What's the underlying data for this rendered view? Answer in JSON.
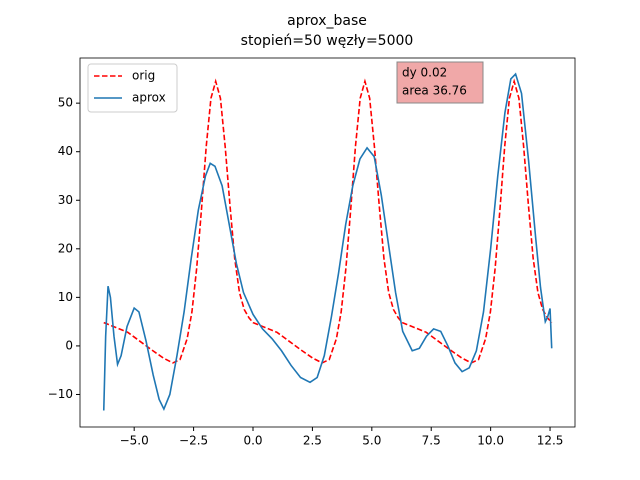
{
  "chart_data": {
    "type": "line",
    "title": "aprox_base",
    "subtitle": "stopień=50 węzły=5000",
    "annotation": [
      "dy 0.02",
      "area 36.76"
    ],
    "annotation_color": "#f0a8a8",
    "legend": "upper left",
    "xlim": [
      -7.28,
      13.55
    ],
    "ylim": [
      -16.7,
      59.3
    ],
    "xticks": [
      {
        "value": -5,
        "label": "−5.0"
      },
      {
        "value": -2.5,
        "label": "−2.5"
      },
      {
        "value": 0,
        "label": "0.0"
      },
      2.5,
      {
        "value": 5,
        "label": "5.0"
      },
      7.5,
      {
        "value": 10,
        "label": "10.0"
      },
      12.5
    ],
    "yticks": [
      {
        "value": -10,
        "label": "−10"
      },
      0,
      10,
      20,
      30,
      40,
      50
    ],
    "series": [
      {
        "name": "orig",
        "color": "#ff0000",
        "dashed": true,
        "x": [
          -6.28,
          -5.77,
          -5.27,
          -4.77,
          -4.27,
          -3.77,
          -3.37,
          -3.07,
          -2.77,
          -2.57,
          -2.37,
          -2.17,
          -1.97,
          -1.77,
          -1.57,
          -1.37,
          -1.17,
          -0.97,
          -0.77,
          -0.57,
          -0.37,
          -0.17,
          0.0,
          0.51,
          1.01,
          1.51,
          2.01,
          2.51,
          2.91,
          3.21,
          3.51,
          3.71,
          3.91,
          4.11,
          4.31,
          4.51,
          4.71,
          4.91,
          5.11,
          5.31,
          5.51,
          5.71,
          5.91,
          6.11,
          6.28,
          6.79,
          7.29,
          7.79,
          8.29,
          8.79,
          9.19,
          9.49,
          9.79,
          9.99,
          10.19,
          10.39,
          10.59,
          10.79,
          10.99,
          11.19,
          11.39,
          11.59,
          11.79,
          11.99,
          12.19,
          12.39,
          12.57
        ],
        "values": [
          4.8,
          3.8,
          2.8,
          1.0,
          -0.8,
          -2.5,
          -3.5,
          -2.8,
          1.5,
          7,
          16,
          28,
          41,
          51,
          54.5,
          51,
          41,
          29,
          18,
          11,
          7.5,
          5.8,
          4.8,
          3.8,
          2.8,
          1.0,
          -0.8,
          -2.5,
          -3.5,
          -2.8,
          1.5,
          7,
          16,
          28,
          41,
          51,
          54.5,
          51,
          41,
          29,
          18,
          11,
          7.5,
          5.8,
          4.8,
          3.8,
          2.8,
          1.0,
          -0.8,
          -2.5,
          -3.5,
          -2.8,
          1.5,
          7,
          16,
          28,
          41,
          51,
          54.5,
          51,
          41,
          29,
          18,
          11,
          7.5,
          5.8,
          4.8
        ]
      },
      {
        "name": "aprox",
        "color": "#1f77b4",
        "dashed": false,
        "x": [
          -6.28,
          -6.2,
          -6.1,
          -6.0,
          -5.85,
          -5.7,
          -5.55,
          -5.3,
          -5.0,
          -4.8,
          -4.5,
          -4.2,
          -3.95,
          -3.75,
          -3.5,
          -3.2,
          -2.9,
          -2.6,
          -2.3,
          -2.0,
          -1.8,
          -1.6,
          -1.3,
          -1.0,
          -0.7,
          -0.4,
          0.0,
          0.4,
          0.8,
          1.2,
          1.6,
          2.0,
          2.4,
          2.7,
          3.0,
          3.3,
          3.6,
          3.9,
          4.2,
          4.5,
          4.8,
          5.1,
          5.4,
          5.7,
          6.0,
          6.3,
          6.7,
          7.0,
          7.3,
          7.6,
          7.9,
          8.2,
          8.5,
          8.8,
          9.1,
          9.4,
          9.7,
          10.0,
          10.3,
          10.6,
          10.85,
          11.05,
          11.3,
          11.6,
          11.9,
          12.1,
          12.3,
          12.4,
          12.5,
          12.57
        ],
        "values": [
          -13.3,
          2,
          12.3,
          10,
          2,
          -3.8,
          -2,
          4,
          7.8,
          7,
          1,
          -6,
          -11,
          -13,
          -10,
          -2,
          7,
          18,
          28,
          35,
          37.6,
          37,
          33,
          25,
          17,
          11,
          6.5,
          3.5,
          1.5,
          -1,
          -4,
          -6.5,
          -7.5,
          -6.5,
          -2,
          6,
          15,
          25,
          33,
          38.5,
          40.8,
          39,
          31,
          21,
          11,
          3,
          -1,
          -0.5,
          2,
          3.5,
          3,
          0,
          -3.5,
          -5.3,
          -4.5,
          -1,
          7,
          20,
          35,
          48,
          55,
          56,
          52,
          38,
          22,
          12,
          5,
          6,
          7.7,
          -0.5
        ]
      }
    ]
  }
}
